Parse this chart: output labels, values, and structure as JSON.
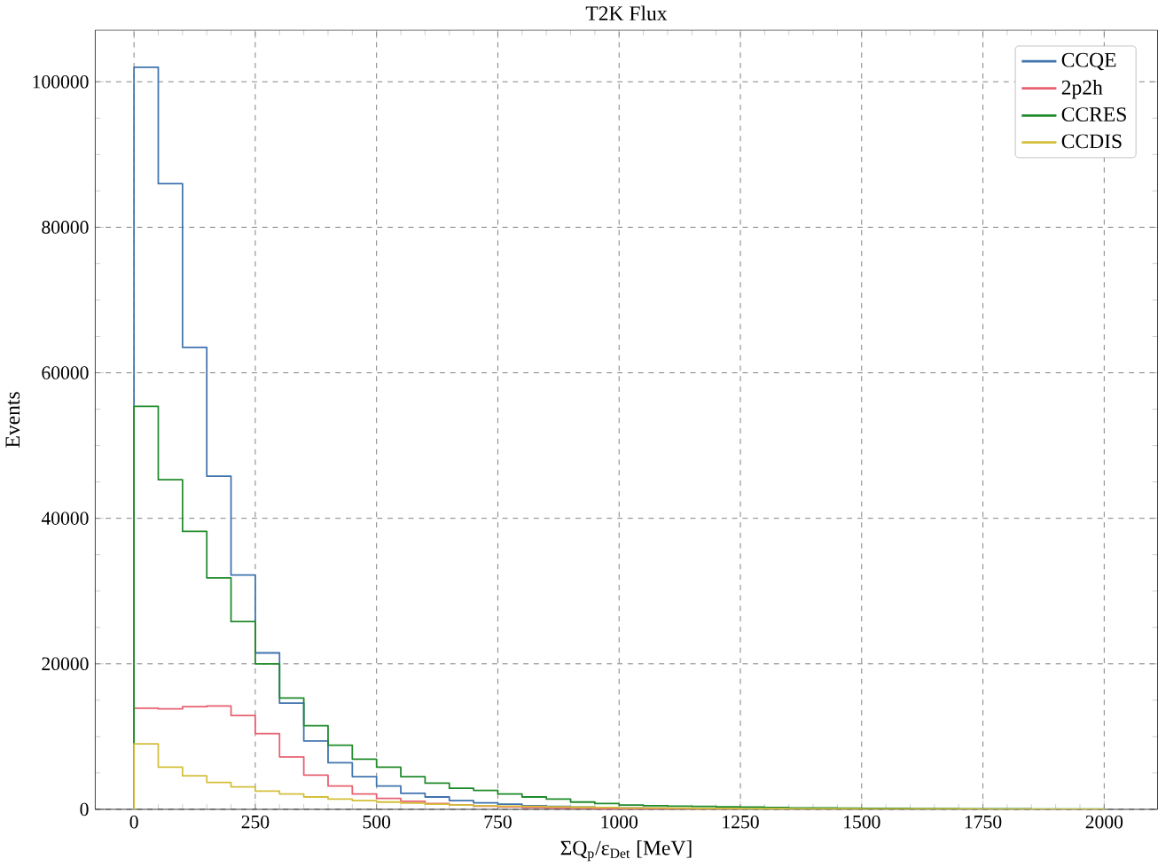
{
  "chart_data": {
    "type": "histogram",
    "title": "T2K Flux",
    "xlabel": "ΣQ$_{p}$/ε$_{Det}$ [MeV]",
    "ylabel": "Events",
    "bins": [
      0,
      50,
      100,
      150,
      200,
      250,
      300,
      350,
      400,
      450,
      500,
      550,
      600,
      650,
      700,
      750,
      800,
      850,
      900,
      950,
      1000,
      1050,
      1100,
      1150,
      1200,
      1250,
      1300,
      1350,
      1400,
      1450,
      1500,
      1550,
      1600,
      1650,
      1700,
      1750,
      1800,
      1850,
      1900,
      1950,
      2000
    ],
    "series": [
      {
        "name": "CCQE",
        "color": "#3f73ae",
        "values": [
          102000,
          86000,
          63500,
          45800,
          32200,
          21500,
          14600,
          9400,
          6400,
          4500,
          3200,
          2200,
          1700,
          1200,
          900,
          700,
          500,
          400,
          300,
          250,
          200,
          150,
          120,
          100,
          80,
          70,
          60,
          50,
          40,
          30,
          30,
          20,
          20,
          20,
          10,
          10,
          10,
          10,
          10,
          10
        ]
      },
      {
        "name": "2p2h",
        "color": "#e8606f",
        "values": [
          13900,
          13800,
          14100,
          14200,
          12900,
          10400,
          7200,
          4700,
          3200,
          2100,
          1500,
          1100,
          800,
          600,
          450,
          350,
          250,
          200,
          150,
          100,
          80,
          60,
          50,
          40,
          30,
          20,
          20,
          10,
          10,
          10,
          10,
          10,
          10,
          0,
          0,
          0,
          0,
          0,
          0,
          0
        ]
      },
      {
        "name": "CCRES",
        "color": "#1f8a2a",
        "values": [
          55400,
          45300,
          38200,
          31800,
          25800,
          20000,
          15300,
          11500,
          8800,
          6900,
          5800,
          4500,
          3600,
          2900,
          2600,
          2100,
          1700,
          1400,
          1000,
          800,
          600,
          500,
          450,
          400,
          350,
          300,
          250,
          200,
          180,
          160,
          140,
          120,
          100,
          90,
          80,
          70,
          60,
          50,
          40,
          30
        ]
      },
      {
        "name": "CCDIS",
        "color": "#d4bf3a",
        "values": [
          9000,
          5800,
          4600,
          3700,
          3100,
          2500,
          2100,
          1700,
          1400,
          1200,
          1000,
          850,
          700,
          600,
          500,
          450,
          400,
          350,
          300,
          250,
          200,
          180,
          160,
          140,
          120,
          100,
          90,
          80,
          70,
          60,
          50,
          40,
          40,
          30,
          30,
          20,
          20,
          20,
          10,
          10
        ]
      }
    ],
    "xlim": [
      -80,
      2110
    ],
    "ylim": [
      0,
      107100
    ],
    "xticks": [
      0,
      250,
      500,
      750,
      1000,
      1250,
      1500,
      1750,
      2000
    ],
    "yticks": [
      0,
      20000,
      40000,
      60000,
      80000,
      100000
    ],
    "grid": true,
    "legend": "top right"
  }
}
